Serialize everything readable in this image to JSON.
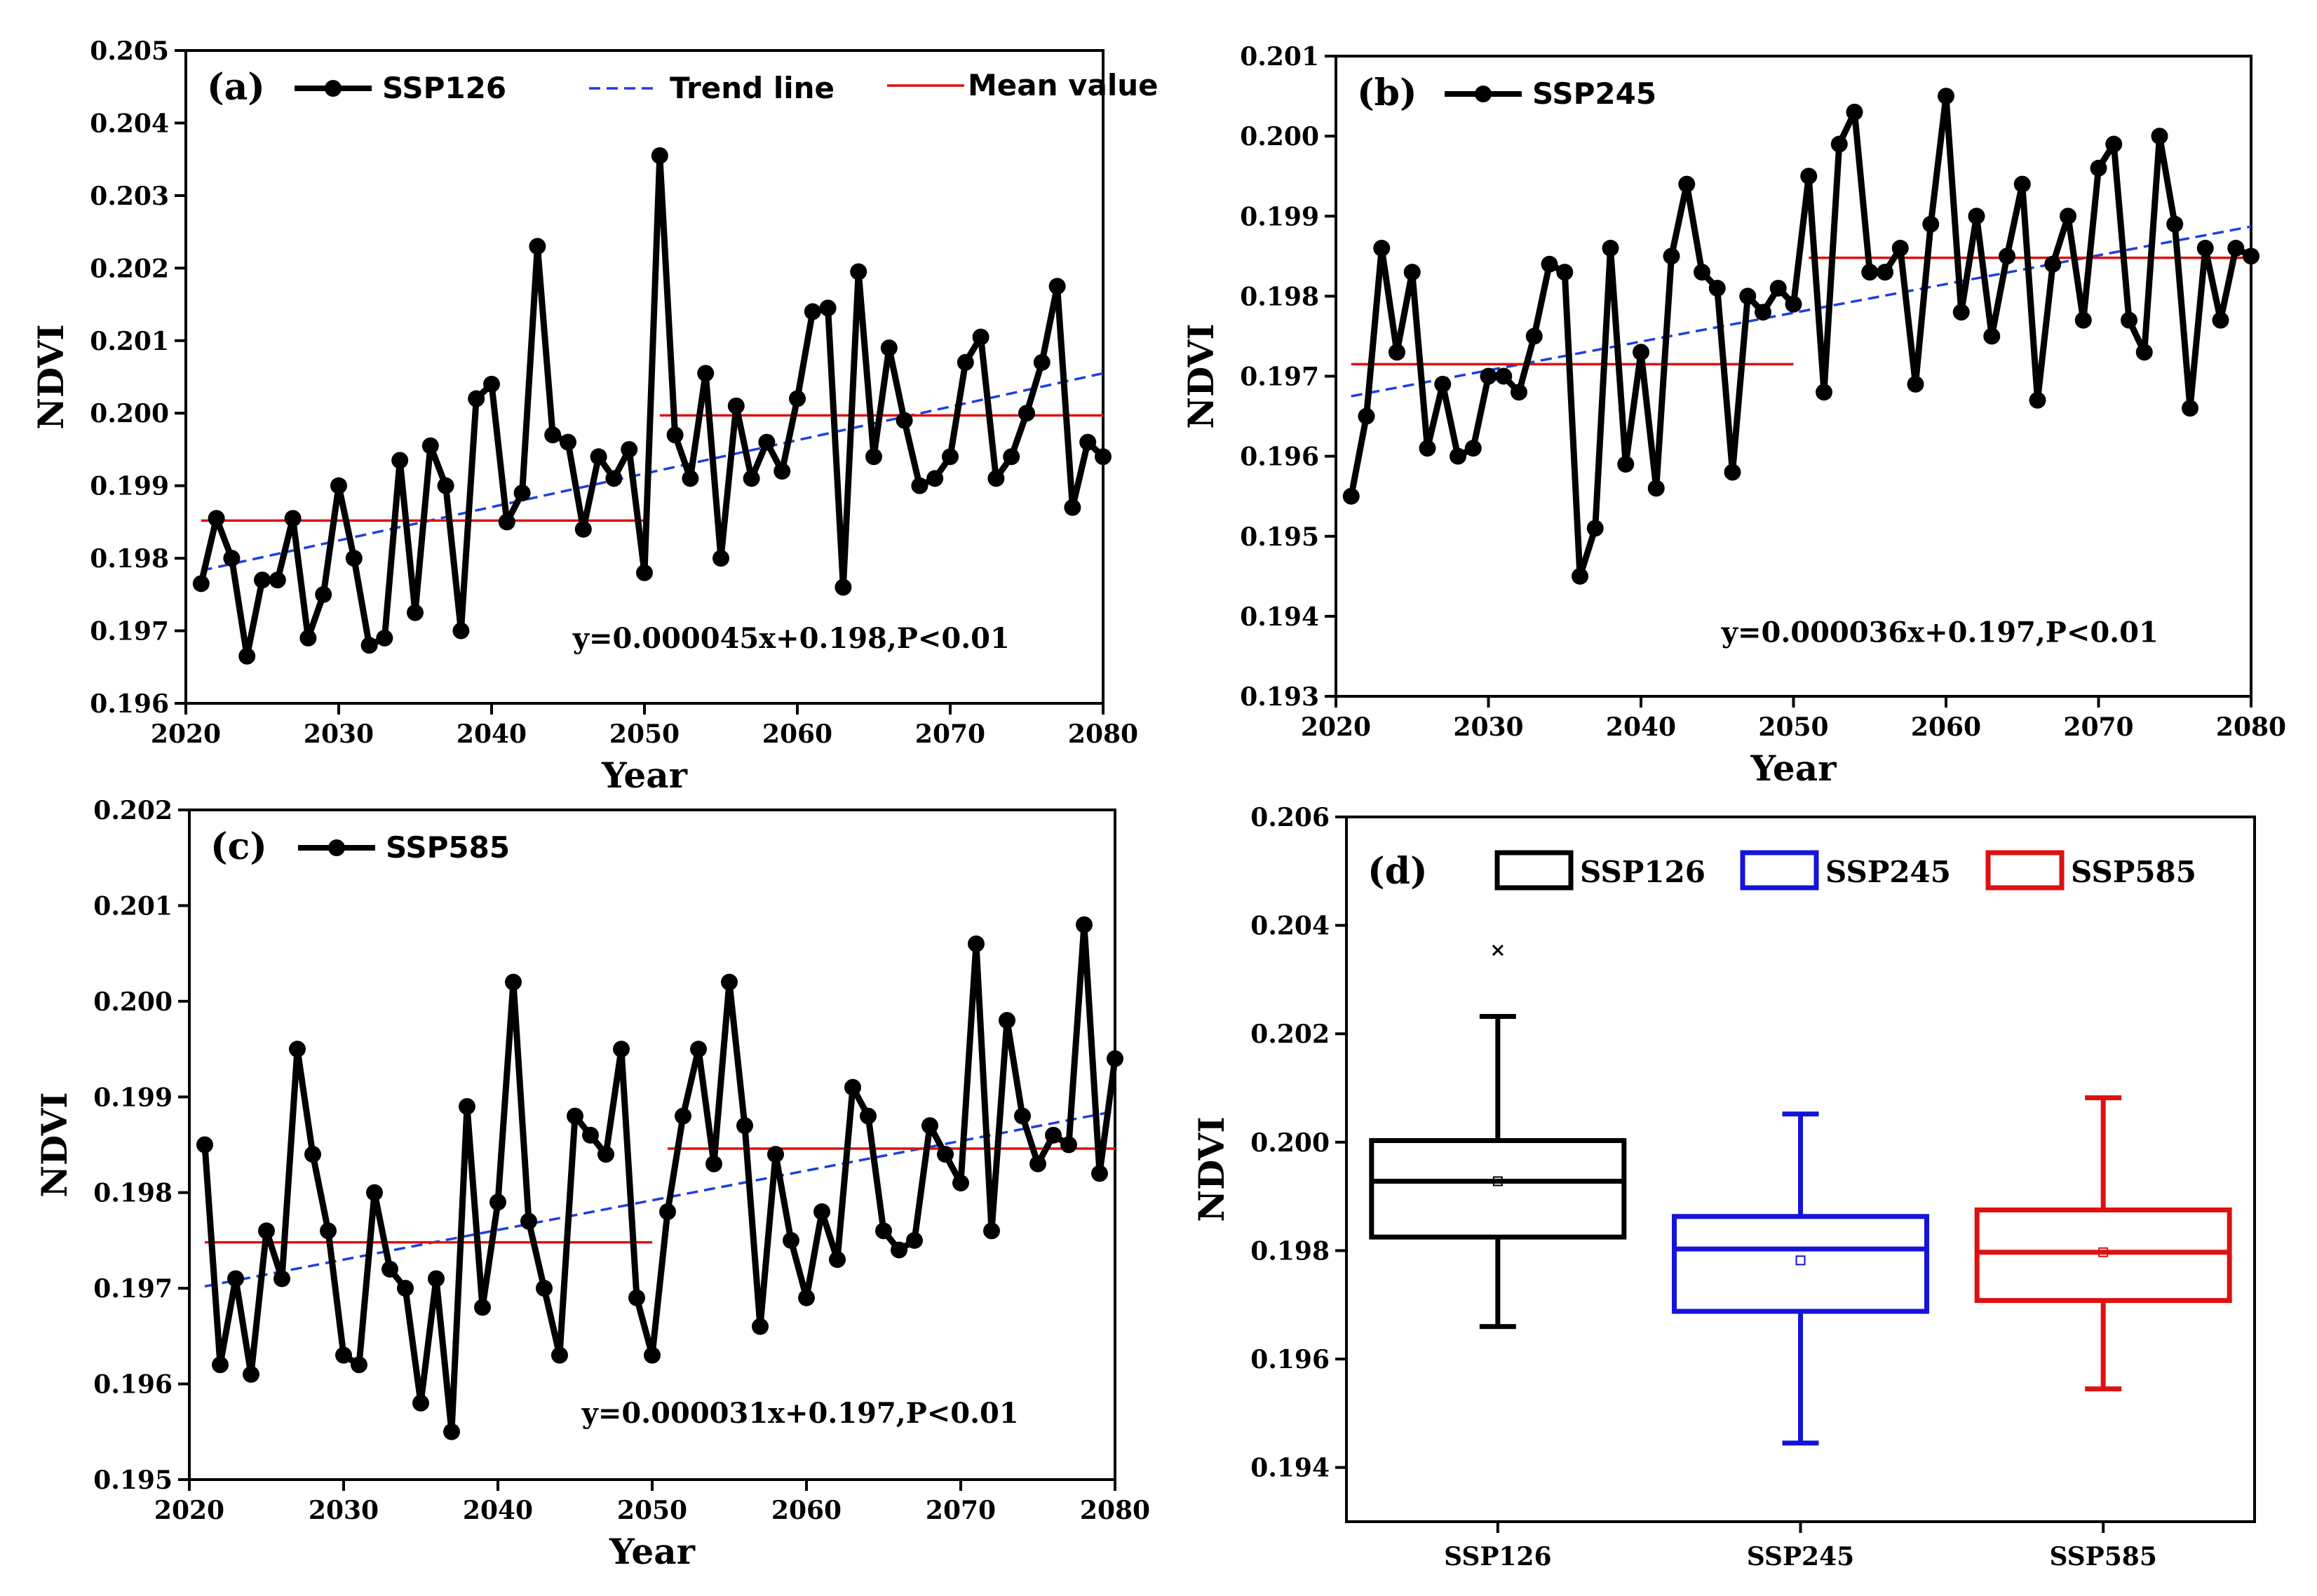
{
  "colors": {
    "line": "#000000",
    "trend": "#1f3fdc",
    "mean": "#e01010",
    "ssp126": "#000000",
    "ssp245": "#1414d8",
    "ssp585": "#dd1111"
  },
  "chart_data": [
    {
      "panel": "(a)",
      "type": "line",
      "xlabel": "Year",
      "ylabel": "NDVI",
      "xlim": [
        2020,
        2080
      ],
      "ylim": [
        0.196,
        0.205
      ],
      "xticks": [
        "2020",
        "2030",
        "2040",
        "2050",
        "2060",
        "2070",
        "2080"
      ],
      "yticks": [
        "0.196",
        "0.197",
        "0.198",
        "0.199",
        "0.200",
        "0.201",
        "0.202",
        "0.203",
        "0.204",
        "0.205"
      ],
      "legend": {
        "series": "SSP126",
        "trend": "Trend line",
        "mean": "Mean value"
      },
      "equation": "y=0.000045x+0.198,P<0.01",
      "x": [
        2021,
        2022,
        2023,
        2024,
        2025,
        2026,
        2027,
        2028,
        2029,
        2030,
        2031,
        2032,
        2033,
        2034,
        2035,
        2036,
        2037,
        2038,
        2039,
        2040,
        2041,
        2042,
        2043,
        2044,
        2045,
        2046,
        2047,
        2048,
        2049,
        2050,
        2051,
        2052,
        2053,
        2054,
        2055,
        2056,
        2057,
        2058,
        2059,
        2060,
        2061,
        2062,
        2063,
        2064,
        2065,
        2066,
        2067,
        2068,
        2069,
        2070,
        2071,
        2072,
        2073,
        2074,
        2075,
        2076,
        2077,
        2078,
        2079,
        2080
      ],
      "values": [
        0.19765,
        0.19855,
        0.198,
        0.19665,
        0.1977,
        0.1977,
        0.19855,
        0.1969,
        0.1975,
        0.199,
        0.198,
        0.1968,
        0.1969,
        0.19935,
        0.19725,
        0.19955,
        0.199,
        0.197,
        0.2002,
        0.2004,
        0.1985,
        0.1989,
        0.2023,
        0.1997,
        0.1996,
        0.1984,
        0.1994,
        0.1991,
        0.1995,
        0.1978,
        0.20355,
        0.1997,
        0.1991,
        0.20055,
        0.198,
        0.2001,
        0.1991,
        0.1996,
        0.1992,
        0.2002,
        0.2014,
        0.20145,
        0.1976,
        0.20195,
        0.1994,
        0.2009,
        0.1999,
        0.199,
        0.1991,
        0.1994,
        0.2007,
        0.20105,
        0.1991,
        0.1994,
        0.2,
        0.2007,
        0.20175,
        0.1987,
        0.1996,
        0.1994
      ],
      "trend": {
        "x": [
          2021,
          2080
        ],
        "y": [
          0.19783,
          0.20055
        ]
      },
      "means": [
        {
          "x": [
            2021,
            2050
          ],
          "y": 0.19852
        },
        {
          "x": [
            2051,
            2080
          ],
          "y": 0.19997
        }
      ]
    },
    {
      "panel": "(b)",
      "type": "line",
      "xlabel": "Year",
      "ylabel": "NDVI",
      "xlim": [
        2020,
        2080
      ],
      "ylim": [
        0.193,
        0.201
      ],
      "xticks": [
        "2020",
        "2030",
        "2040",
        "2050",
        "2060",
        "2070",
        "2080"
      ],
      "yticks": [
        "0.193",
        "0.194",
        "0.195",
        "0.196",
        "0.197",
        "0.198",
        "0.199",
        "0.200",
        "0.201"
      ],
      "legend": {
        "series": "SSP245"
      },
      "equation": "y=0.000036x+0.197,P<0.01",
      "x": [
        2021,
        2022,
        2023,
        2024,
        2025,
        2026,
        2027,
        2028,
        2029,
        2030,
        2031,
        2032,
        2033,
        2034,
        2035,
        2036,
        2037,
        2038,
        2039,
        2040,
        2041,
        2042,
        2043,
        2044,
        2045,
        2046,
        2047,
        2048,
        2049,
        2050,
        2051,
        2052,
        2053,
        2054,
        2055,
        2056,
        2057,
        2058,
        2059,
        2060,
        2061,
        2062,
        2063,
        2064,
        2065,
        2066,
        2067,
        2068,
        2069,
        2070,
        2071,
        2072,
        2073,
        2074,
        2075,
        2076,
        2077,
        2078,
        2079,
        2080
      ],
      "values": [
        0.1955,
        0.1965,
        0.1986,
        0.1973,
        0.1983,
        0.1961,
        0.1969,
        0.196,
        0.1961,
        0.197,
        0.197,
        0.1968,
        0.1975,
        0.1984,
        0.1983,
        0.1945,
        0.1951,
        0.1986,
        0.1959,
        0.1973,
        0.1956,
        0.1985,
        0.1994,
        0.1983,
        0.1981,
        0.1958,
        0.198,
        0.1978,
        0.1981,
        0.1979,
        0.1995,
        0.1968,
        0.1999,
        0.2003,
        0.1983,
        0.1983,
        0.1986,
        0.1969,
        0.1989,
        0.2005,
        0.1978,
        0.199,
        0.1975,
        0.1985,
        0.1994,
        0.1967,
        0.1984,
        0.199,
        0.1977,
        0.1996,
        0.1999,
        0.1977,
        0.1973,
        0.2,
        0.1989,
        0.1966,
        0.1986,
        0.1977,
        0.1986,
        0.1985
      ],
      "trend": {
        "x": [
          2021,
          2080
        ],
        "y": [
          0.19675,
          0.19887
        ]
      },
      "means": [
        {
          "x": [
            2021,
            2050
          ],
          "y": 0.19715
        },
        {
          "x": [
            2051,
            2080
          ],
          "y": 0.19848
        }
      ]
    },
    {
      "panel": "(c)",
      "type": "line",
      "xlabel": "Year",
      "ylabel": "NDVI",
      "xlim": [
        2020,
        2080
      ],
      "ylim": [
        0.195,
        0.202
      ],
      "xticks": [
        "2020",
        "2030",
        "2040",
        "2050",
        "2060",
        "2070",
        "2080"
      ],
      "yticks": [
        "0.195",
        "0.196",
        "0.197",
        "0.198",
        "0.199",
        "0.200",
        "0.201",
        "0.202"
      ],
      "legend": {
        "series": "SSP585"
      },
      "equation": "y=0.000031x+0.197,P<0.01",
      "x": [
        2021,
        2022,
        2023,
        2024,
        2025,
        2026,
        2027,
        2028,
        2029,
        2030,
        2031,
        2032,
        2033,
        2034,
        2035,
        2036,
        2037,
        2038,
        2039,
        2040,
        2041,
        2042,
        2043,
        2044,
        2045,
        2046,
        2047,
        2048,
        2049,
        2050,
        2051,
        2052,
        2053,
        2054,
        2055,
        2056,
        2057,
        2058,
        2059,
        2060,
        2061,
        2062,
        2063,
        2064,
        2065,
        2066,
        2067,
        2068,
        2069,
        2070,
        2071,
        2072,
        2073,
        2074,
        2075,
        2076,
        2077,
        2078,
        2079,
        2080
      ],
      "values": [
        0.1985,
        0.1962,
        0.1971,
        0.1961,
        0.1976,
        0.1971,
        0.1995,
        0.1984,
        0.1976,
        0.1963,
        0.1962,
        0.198,
        0.1972,
        0.197,
        0.1958,
        0.1971,
        0.1955,
        0.1989,
        0.1968,
        0.1979,
        0.2002,
        0.1977,
        0.197,
        0.1963,
        0.1988,
        0.1986,
        0.1984,
        0.1995,
        0.1969,
        0.1963,
        0.1978,
        0.1988,
        0.1995,
        0.1983,
        0.2002,
        0.1987,
        0.1966,
        0.1984,
        0.1975,
        0.1969,
        0.1978,
        0.1973,
        0.1991,
        0.1988,
        0.1976,
        0.1974,
        0.1975,
        0.1987,
        0.1984,
        0.1981,
        0.2006,
        0.1976,
        0.1998,
        0.1988,
        0.1983,
        0.1986,
        0.1985,
        0.2008,
        0.1982,
        0.1994
      ],
      "trend": {
        "x": [
          2021,
          2080
        ],
        "y": [
          0.19702,
          0.19885
        ]
      },
      "means": [
        {
          "x": [
            2021,
            2050
          ],
          "y": 0.19748
        },
        {
          "x": [
            2051,
            2080
          ],
          "y": 0.19846
        }
      ]
    },
    {
      "panel": "(d)",
      "type": "box",
      "ylabel": "NDVI",
      "ylim": [
        0.193,
        0.206
      ],
      "yticks": [
        "0.194",
        "0.196",
        "0.198",
        "0.200",
        "0.202",
        "0.204",
        "0.206"
      ],
      "categories": [
        "SSP126",
        "SSP245",
        "SSP585"
      ],
      "boxes": [
        {
          "name": "SSP126",
          "min": 0.1966,
          "q1": 0.19825,
          "median": 0.19928,
          "q3": 0.20003,
          "max": 0.20232,
          "mean": 0.19928,
          "outliers": [
            0.20354
          ]
        },
        {
          "name": "SSP245",
          "min": 0.19445,
          "q1": 0.19688,
          "median": 0.19803,
          "q3": 0.19863,
          "max": 0.20052,
          "mean": 0.19782,
          "outliers": []
        },
        {
          "name": "SSP585",
          "min": 0.19545,
          "q1": 0.19708,
          "median": 0.19797,
          "q3": 0.19875,
          "max": 0.20082,
          "mean": 0.19797,
          "outliers": []
        }
      ]
    }
  ]
}
